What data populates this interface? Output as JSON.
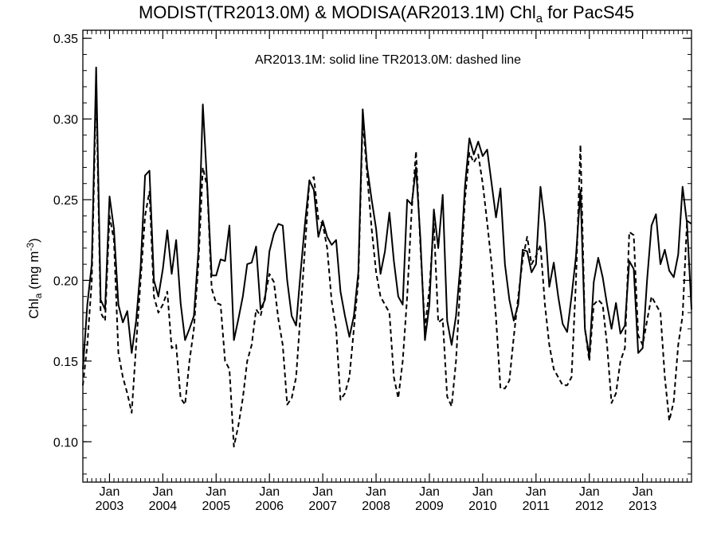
{
  "chart_data": {
    "type": "line",
    "title_main": "MODIST(TR2013.0M) & MODISA(AR2013.1M)  Chl",
    "title_sub": "a",
    "title_tail": " for PacS45",
    "ylabel_main": "Chl",
    "ylabel_sub": "a",
    "ylabel_unit": " (mg m",
    "ylabel_exp": "-3",
    "ylabel_close": ")",
    "legend_text": "AR2013.1M: solid line   TR2013.0M: dashed line",
    "ylim": [
      0.075,
      0.355
    ],
    "xlim": [
      "2002-07",
      "2013-12"
    ],
    "y_ticks": [
      "0.10",
      "0.15",
      "0.20",
      "0.25",
      "0.30",
      "0.35"
    ],
    "x_ticks": [
      {
        "month": "Jan",
        "year": "2003"
      },
      {
        "month": "Jan",
        "year": "2004"
      },
      {
        "month": "Jan",
        "year": "2005"
      },
      {
        "month": "Jan",
        "year": "2006"
      },
      {
        "month": "Jan",
        "year": "2007"
      },
      {
        "month": "Jan",
        "year": "2008"
      },
      {
        "month": "Jan",
        "year": "2009"
      },
      {
        "month": "Jan",
        "year": "2010"
      },
      {
        "month": "Jan",
        "year": "2011"
      },
      {
        "month": "Jan",
        "year": "2012"
      },
      {
        "month": "Jan",
        "year": "2013"
      }
    ],
    "x": [
      "2002-07",
      "2002-08",
      "2002-09",
      "2002-10",
      "2002-11",
      "2002-12",
      "2003-01",
      "2003-02",
      "2003-03",
      "2003-04",
      "2003-05",
      "2003-06",
      "2003-07",
      "2003-08",
      "2003-09",
      "2003-10",
      "2003-11",
      "2003-12",
      "2004-01",
      "2004-02",
      "2004-03",
      "2004-04",
      "2004-05",
      "2004-06",
      "2004-07",
      "2004-08",
      "2004-09",
      "2004-10",
      "2004-11",
      "2004-12",
      "2005-01",
      "2005-02",
      "2005-03",
      "2005-04",
      "2005-05",
      "2005-06",
      "2005-07",
      "2005-08",
      "2005-09",
      "2005-10",
      "2005-11",
      "2005-12",
      "2006-01",
      "2006-02",
      "2006-03",
      "2006-04",
      "2006-05",
      "2006-06",
      "2006-07",
      "2006-08",
      "2006-09",
      "2006-10",
      "2006-11",
      "2006-12",
      "2007-01",
      "2007-02",
      "2007-03",
      "2007-04",
      "2007-05",
      "2007-06",
      "2007-07",
      "2007-08",
      "2007-09",
      "2007-10",
      "2007-11",
      "2007-12",
      "2008-01",
      "2008-02",
      "2008-03",
      "2008-04",
      "2008-05",
      "2008-06",
      "2008-07",
      "2008-08",
      "2008-09",
      "2008-10",
      "2008-11",
      "2008-12",
      "2009-01",
      "2009-02",
      "2009-03",
      "2009-04",
      "2009-05",
      "2009-06",
      "2009-07",
      "2009-08",
      "2009-09",
      "2009-10",
      "2009-11",
      "2009-12",
      "2010-01",
      "2010-02",
      "2010-03",
      "2010-04",
      "2010-05",
      "2010-06",
      "2010-07",
      "2010-08",
      "2010-09",
      "2010-10",
      "2010-11",
      "2010-12",
      "2011-01",
      "2011-02",
      "2011-03",
      "2011-04",
      "2011-05",
      "2011-06",
      "2011-07",
      "2011-08",
      "2011-09",
      "2011-10",
      "2011-11",
      "2011-12",
      "2012-01",
      "2012-02",
      "2012-03",
      "2012-04",
      "2012-05",
      "2012-06",
      "2012-07",
      "2012-08",
      "2012-09",
      "2012-10",
      "2012-11",
      "2012-12",
      "2013-01",
      "2013-02",
      "2013-03",
      "2013-04",
      "2013-05",
      "2013-06",
      "2013-07",
      "2013-08",
      "2013-09",
      "2013-10",
      "2013-11",
      "2013-12"
    ],
    "series": [
      {
        "style": "solid",
        "values": [
          0.145,
          0.185,
          0.21,
          0.332,
          0.188,
          0.182,
          0.252,
          0.232,
          0.185,
          0.174,
          0.181,
          0.155,
          0.175,
          0.208,
          0.265,
          0.268,
          0.2,
          0.19,
          0.207,
          0.231,
          0.204,
          0.225,
          0.186,
          0.163,
          0.17,
          0.178,
          0.218,
          0.309,
          0.259,
          0.203,
          0.203,
          0.213,
          0.212,
          0.234,
          0.163,
          0.176,
          0.19,
          0.21,
          0.211,
          0.221,
          0.182,
          0.188,
          0.218,
          0.229,
          0.235,
          0.234,
          0.2,
          0.178,
          0.172,
          0.205,
          0.235,
          0.262,
          0.256,
          0.227,
          0.237,
          0.227,
          0.222,
          0.225,
          0.193,
          0.178,
          0.165,
          0.178,
          0.205,
          0.306,
          0.27,
          0.25,
          0.232,
          0.204,
          0.218,
          0.242,
          0.212,
          0.19,
          0.185,
          0.25,
          0.247,
          0.27,
          0.225,
          0.163,
          0.185,
          0.244,
          0.22,
          0.253,
          0.175,
          0.16,
          0.178,
          0.21,
          0.258,
          0.288,
          0.278,
          0.286,
          0.277,
          0.281,
          0.26,
          0.239,
          0.257,
          0.21,
          0.188,
          0.175,
          0.185,
          0.219,
          0.218,
          0.205,
          0.21,
          0.258,
          0.235,
          0.196,
          0.211,
          0.19,
          0.173,
          0.168,
          0.19,
          0.215,
          0.256,
          0.17,
          0.153,
          0.199,
          0.214,
          0.202,
          0.185,
          0.17,
          0.186,
          0.167,
          0.172,
          0.212,
          0.207,
          0.155,
          0.158,
          0.2,
          0.234,
          0.241,
          0.21,
          0.219,
          0.206,
          0.202,
          0.216,
          0.258,
          0.235,
          0.182
        ]
      },
      {
        "style": "dashed",
        "values": [
          0.135,
          0.16,
          0.2,
          0.322,
          0.18,
          0.175,
          0.24,
          0.225,
          0.155,
          0.14,
          0.13,
          0.118,
          0.16,
          0.2,
          0.24,
          0.255,
          0.19,
          0.18,
          0.185,
          0.193,
          0.158,
          0.16,
          0.127,
          0.123,
          0.15,
          0.17,
          0.21,
          0.27,
          0.258,
          0.195,
          0.186,
          0.185,
          0.15,
          0.145,
          0.097,
          0.11,
          0.127,
          0.15,
          0.16,
          0.182,
          0.178,
          0.19,
          0.204,
          0.199,
          0.176,
          0.16,
          0.123,
          0.127,
          0.14,
          0.18,
          0.22,
          0.262,
          0.264,
          0.238,
          0.235,
          0.22,
          0.187,
          0.17,
          0.126,
          0.13,
          0.14,
          0.17,
          0.2,
          0.3,
          0.265,
          0.232,
          0.205,
          0.19,
          0.185,
          0.18,
          0.14,
          0.127,
          0.15,
          0.19,
          0.243,
          0.28,
          0.22,
          0.17,
          0.195,
          0.235,
          0.174,
          0.176,
          0.128,
          0.122,
          0.15,
          0.2,
          0.25,
          0.279,
          0.273,
          0.278,
          0.26,
          0.236,
          0.21,
          0.177,
          0.133,
          0.133,
          0.138,
          0.165,
          0.19,
          0.213,
          0.227,
          0.21,
          0.215,
          0.222,
          0.185,
          0.16,
          0.145,
          0.14,
          0.135,
          0.135,
          0.14,
          0.2,
          0.284,
          0.17,
          0.15,
          0.185,
          0.188,
          0.185,
          0.16,
          0.124,
          0.13,
          0.15,
          0.158,
          0.23,
          0.228,
          0.166,
          0.16,
          0.175,
          0.19,
          0.185,
          0.18,
          0.14,
          0.113,
          0.125,
          0.16,
          0.178,
          0.237,
          0.235
        ]
      }
    ]
  }
}
